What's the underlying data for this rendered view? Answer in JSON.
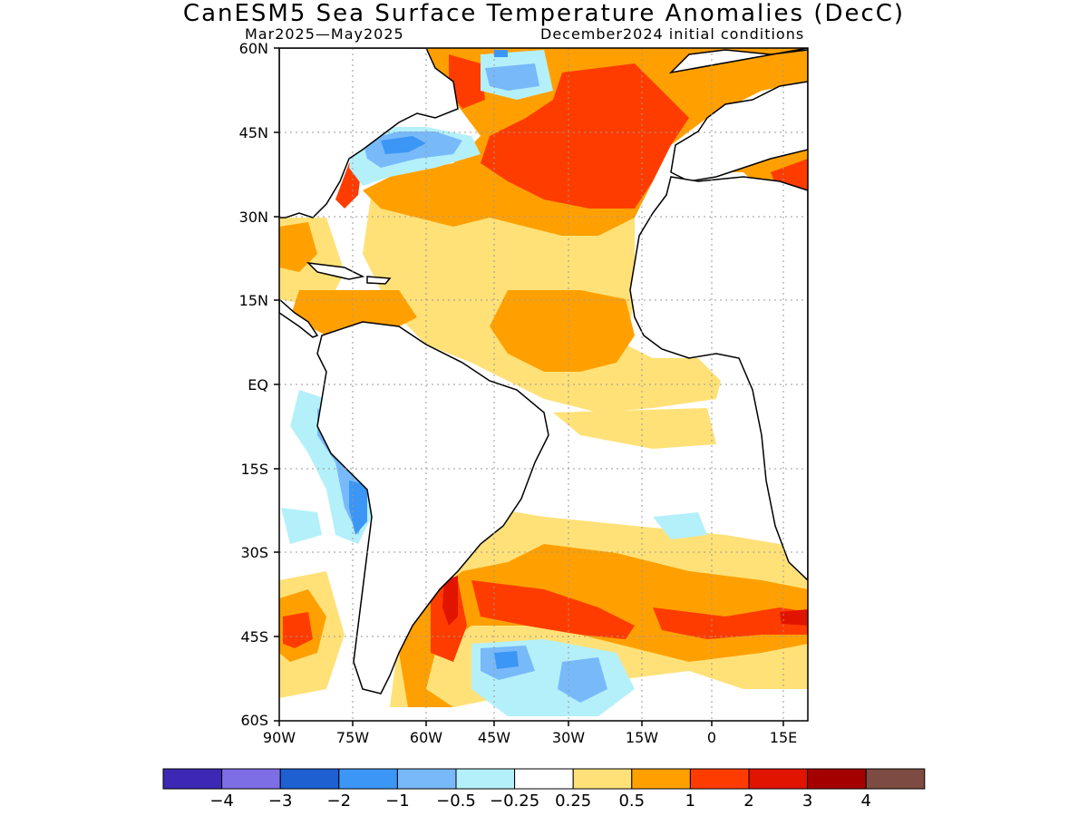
{
  "title": "CanESM5 Sea Surface Temperature Anomalies (DecC)",
  "subtitle_left": "Mar2025—May2025",
  "subtitle_right": "December2024 initial conditions",
  "lat_ticks": [
    "60N",
    "45N",
    "30N",
    "15N",
    "EQ",
    "15S",
    "30S",
    "45S",
    "60S"
  ],
  "lon_ticks": [
    "90W",
    "75W",
    "60W",
    "45W",
    "30W",
    "15W",
    "0",
    "15E"
  ],
  "colorbar": {
    "colors": [
      "#3c28b4",
      "#7d6ee6",
      "#1e5fd2",
      "#3c96f5",
      "#78b9fa",
      "#b4f0fa",
      "#ffffff",
      "#ffe178",
      "#ffa000",
      "#ff3c00",
      "#e11400",
      "#a50000",
      "#7d4b41"
    ],
    "labels": [
      "−4",
      "−3",
      "−2",
      "−1",
      "−0.5",
      "−0.25",
      "0.25",
      "0.5",
      "1",
      "2",
      "3",
      "4"
    ]
  },
  "map": {
    "region": "Atlantic Ocean",
    "lon_range": [
      -90,
      17
    ],
    "lat_range": [
      -60,
      60
    ]
  }
}
